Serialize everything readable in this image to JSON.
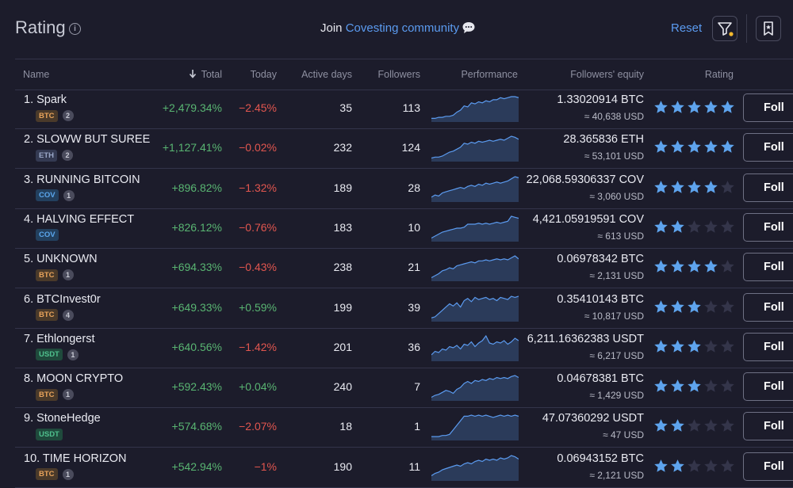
{
  "header": {
    "title": "Rating",
    "join_prefix": "Join",
    "join_link": "Covesting community",
    "reset_label": "Reset"
  },
  "columns": {
    "name": "Name",
    "total": "Total",
    "today": "Today",
    "active_days": "Active days",
    "followers": "Followers",
    "performance": "Performance",
    "followers_equity": "Followers' equity",
    "rating": "Rating"
  },
  "colors": {
    "accent": "#5b9bf0",
    "positive": "#59b572",
    "negative": "#e2564f",
    "star_on": "#5ea4ee",
    "star_off": "#34354a"
  },
  "follow_label": "Foll",
  "rows": [
    {
      "name": "1. Spark",
      "coin": "BTC",
      "count": "2",
      "total": "+2,479.34%",
      "today": "−2.45%",
      "today_sign": "neg",
      "active_days": "35",
      "followers": "113",
      "equity": "1.33020914 BTC",
      "usd": "≈ 40,638 USD",
      "rating": 5,
      "perf": [
        2,
        2,
        3,
        3,
        4,
        4,
        5,
        8,
        10,
        14,
        13,
        17,
        16,
        18,
        17,
        19,
        18,
        20,
        20,
        22,
        21,
        22,
        23,
        23,
        22
      ]
    },
    {
      "name": "2. SLOWW BUT SUREE",
      "coin": "ETH",
      "count": "2",
      "total": "+1,127.41%",
      "today": "−0.02%",
      "today_sign": "neg",
      "active_days": "232",
      "followers": "124",
      "equity": "28.365836 ETH",
      "usd": "≈ 53,101 USD",
      "rating": 5,
      "perf": [
        2,
        3,
        3,
        4,
        6,
        8,
        9,
        11,
        13,
        17,
        16,
        18,
        17,
        19,
        18,
        19,
        20,
        19,
        20,
        21,
        20,
        22,
        24,
        23,
        21
      ]
    },
    {
      "name": "3. RUNNING BITCOIN",
      "coin": "COV",
      "count": "1",
      "total": "+896.82%",
      "today": "−1.32%",
      "today_sign": "neg",
      "active_days": "189",
      "followers": "28",
      "equity": "22,068.59306337 COV",
      "usd": "≈ 3,060 USD",
      "rating": 4,
      "perf": [
        3,
        5,
        4,
        7,
        8,
        9,
        10,
        11,
        12,
        11,
        13,
        14,
        13,
        15,
        14,
        16,
        15,
        16,
        17,
        16,
        17,
        18,
        20,
        22,
        21
      ]
    },
    {
      "name": "4. HALVING EFFECT",
      "coin": "COV",
      "count": "",
      "total": "+826.12%",
      "today": "−0.76%",
      "today_sign": "neg",
      "active_days": "183",
      "followers": "10",
      "equity": "4,421.05919591 COV",
      "usd": "≈ 613 USD",
      "rating": 2,
      "perf": [
        2,
        4,
        6,
        8,
        9,
        10,
        11,
        12,
        12,
        13,
        16,
        16,
        16,
        17,
        16,
        17,
        16,
        17,
        18,
        17,
        18,
        19,
        24,
        23,
        22
      ]
    },
    {
      "name": "5. UNKNOWN",
      "coin": "BTC",
      "count": "1",
      "total": "+694.33%",
      "today": "−0.43%",
      "today_sign": "neg",
      "active_days": "238",
      "followers": "21",
      "equity": "0.06978342 BTC",
      "usd": "≈ 2,131 USD",
      "rating": 4,
      "perf": [
        2,
        4,
        6,
        9,
        10,
        12,
        11,
        14,
        15,
        16,
        17,
        18,
        17,
        19,
        19,
        20,
        19,
        20,
        21,
        20,
        21,
        20,
        22,
        24,
        21
      ]
    },
    {
      "name": "6. BTCInvest0r",
      "coin": "BTC",
      "count": "4",
      "total": "+649.33%",
      "today": "+0.59%",
      "today_sign": "pos",
      "active_days": "199",
      "followers": "39",
      "equity": "0.35410143 BTC",
      "usd": "≈ 10,817 USD",
      "rating": 3,
      "perf": [
        2,
        3,
        6,
        9,
        12,
        15,
        13,
        16,
        12,
        18,
        20,
        17,
        21,
        19,
        20,
        21,
        19,
        20,
        18,
        21,
        20,
        19,
        22,
        21,
        22
      ]
    },
    {
      "name": "7. Ethlongerst",
      "coin": "USDT",
      "count": "1",
      "total": "+640.56%",
      "today": "−1.42%",
      "today_sign": "neg",
      "active_days": "201",
      "followers": "36",
      "equity": "6,211.16362383 USDT",
      "usd": "≈ 6,217 USD",
      "rating": 3,
      "perf": [
        4,
        7,
        6,
        9,
        8,
        11,
        10,
        12,
        9,
        13,
        12,
        15,
        11,
        14,
        16,
        20,
        14,
        13,
        15,
        14,
        16,
        13,
        15,
        18,
        16
      ]
    },
    {
      "name": "8. MOON CRYPTO",
      "coin": "BTC",
      "count": "1",
      "total": "+592.43%",
      "today": "+0.04%",
      "today_sign": "pos",
      "active_days": "240",
      "followers": "7",
      "equity": "0.04678381 BTC",
      "usd": "≈ 1,429 USD",
      "rating": 3,
      "perf": [
        2,
        4,
        5,
        7,
        9,
        8,
        6,
        10,
        12,
        16,
        18,
        16,
        19,
        18,
        20,
        19,
        21,
        20,
        22,
        21,
        22,
        21,
        23,
        24,
        22
      ]
    },
    {
      "name": "9. StoneHedge",
      "coin": "USDT",
      "count": "",
      "total": "+574.68%",
      "today": "−2.07%",
      "today_sign": "neg",
      "active_days": "18",
      "followers": "1",
      "equity": "47.07360292 USDT",
      "usd": "≈ 47 USD",
      "rating": 2,
      "perf": [
        2,
        2,
        2,
        3,
        3,
        4,
        8,
        12,
        16,
        20,
        20,
        21,
        20,
        21,
        20,
        21,
        20,
        19,
        20,
        21,
        20,
        21,
        20,
        21,
        20
      ]
    },
    {
      "name": "10. TIME HORIZON",
      "coin": "BTC",
      "count": "1",
      "total": "+542.94%",
      "today": "−1%",
      "today_sign": "neg",
      "active_days": "190",
      "followers": "11",
      "equity": "0.06943152 BTC",
      "usd": "≈ 2,121 USD",
      "rating": 2,
      "perf": [
        3,
        5,
        6,
        8,
        9,
        10,
        11,
        12,
        11,
        13,
        14,
        13,
        15,
        16,
        15,
        17,
        16,
        17,
        16,
        18,
        17,
        18,
        20,
        19,
        17
      ]
    }
  ]
}
